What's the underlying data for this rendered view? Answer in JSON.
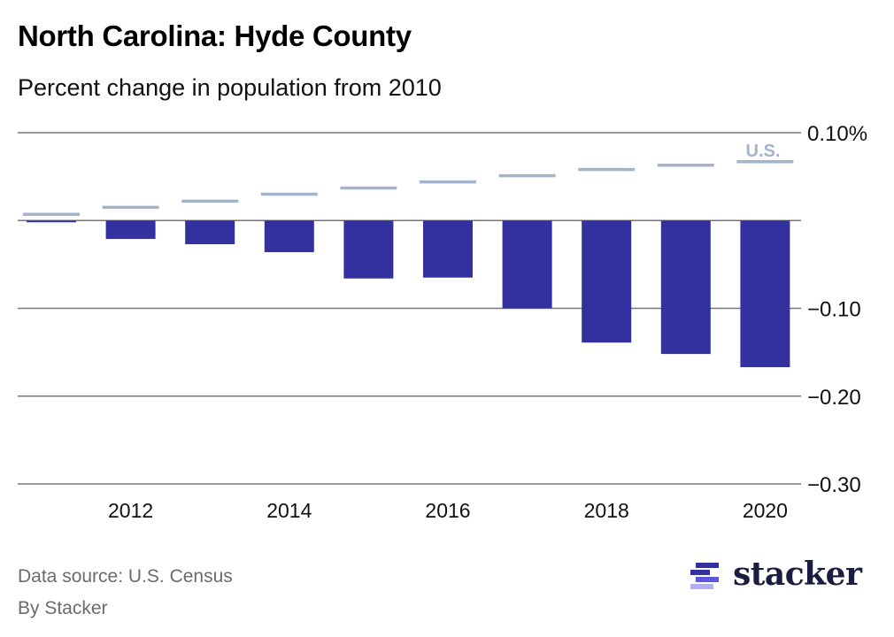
{
  "header": {
    "title": "North Carolina: Hyde County",
    "subtitle": "Percent change in population from 2010"
  },
  "footer": {
    "source": "Data source: U.S. Census",
    "byline": "By Stacker",
    "logo_text": "stacker"
  },
  "colors": {
    "bar": "#3330a0",
    "us_line": "#a3b4ca",
    "grid": "#777777",
    "logo_dark": "#3330a0",
    "logo_mid": "#5b55e0",
    "logo_light": "#b3b0f0"
  },
  "chart_data": {
    "type": "bar",
    "title": "North Carolina: Hyde County",
    "subtitle": "Percent change in population from 2010",
    "xlabel": "",
    "ylabel": "",
    "categories": [
      "2011",
      "2012",
      "2013",
      "2014",
      "2015",
      "2016",
      "2017",
      "2018",
      "2019",
      "2020"
    ],
    "series": [
      {
        "name": "Hyde County",
        "type": "bar",
        "values": [
          -0.002,
          -0.021,
          -0.027,
          -0.036,
          -0.066,
          -0.065,
          -0.1,
          -0.139,
          -0.152,
          -0.167
        ]
      },
      {
        "name": "U.S.",
        "type": "marker-line",
        "values": [
          0.007,
          0.015,
          0.022,
          0.03,
          0.037,
          0.044,
          0.051,
          0.058,
          0.063,
          0.067
        ]
      }
    ],
    "x_tick_labels": [
      "2012",
      "2014",
      "2016",
      "2018",
      "2020"
    ],
    "y_ticks": [
      0.1,
      0,
      -0.1,
      -0.2,
      -0.3
    ],
    "y_tick_labels": [
      "0.10%",
      "",
      "−0.10",
      "−0.20",
      "−0.30"
    ],
    "ylim": [
      -0.3,
      0.1
    ],
    "grid": true,
    "legend": {
      "entries": [
        "U.S."
      ],
      "placement": "top-right"
    }
  }
}
